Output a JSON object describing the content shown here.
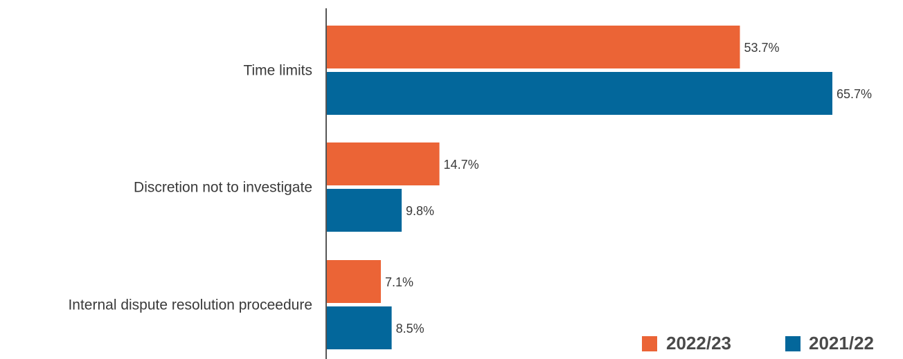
{
  "chart_data": {
    "type": "bar",
    "orientation": "horizontal",
    "categories": [
      "Time limits",
      "Discretion not to investigate",
      "Internal dispute resolution proceedure"
    ],
    "series": [
      {
        "name": "2022/23",
        "color": "#EB6436",
        "values": [
          53.7,
          14.7,
          7.1
        ],
        "labels": [
          "53.7%",
          "14.7%",
          "7.1%"
        ]
      },
      {
        "name": "2021/22",
        "color": "#03679B",
        "values": [
          65.7,
          9.8,
          8.5
        ],
        "labels": [
          "65.7%",
          "9.8%",
          "8.5%"
        ]
      }
    ],
    "xlim": [
      0,
      70
    ],
    "legend_position": "bottom-right",
    "grid": false,
    "value_suffix": "%"
  }
}
